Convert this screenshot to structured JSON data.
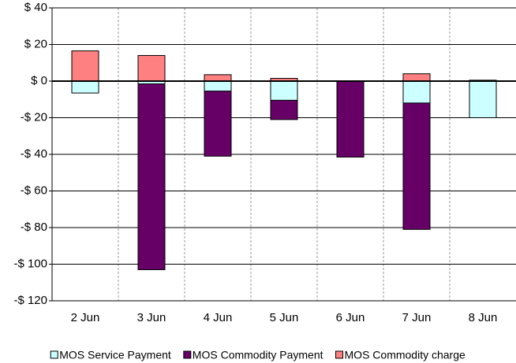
{
  "chart_data": {
    "type": "stacked_bar",
    "categories": [
      "2 Jun",
      "3 Jun",
      "4 Jun",
      "5 Jun",
      "6 Jun",
      "7 Jun",
      "8 Jun"
    ],
    "series": [
      {
        "name": "MOS Service Payment",
        "color": "#ccffff",
        "values": [
          -6.5,
          -1.5,
          -5.5,
          -10.5,
          0,
          -12,
          -20
        ]
      },
      {
        "name": "MOS Commodity Payment",
        "color": "#660066",
        "values": [
          0,
          -101.5,
          -35.5,
          -10.5,
          -41.5,
          -69,
          0
        ]
      },
      {
        "name": "MOS Commodity charge",
        "color": "#ff8080",
        "values": [
          16.5,
          14,
          3.5,
          1.5,
          0,
          4,
          0.5
        ]
      }
    ],
    "ylim": [
      -120,
      40
    ],
    "yticks": [
      {
        "value": -120,
        "label": "-$ 120"
      },
      {
        "value": -100,
        "label": "-$ 100"
      },
      {
        "value": -80,
        "label": "-$ 80"
      },
      {
        "value": -60,
        "label": "-$ 60"
      },
      {
        "value": -40,
        "label": "-$ 40"
      },
      {
        "value": -20,
        "label": "-$ 20"
      },
      {
        "value": 0,
        "label": "$ 0"
      },
      {
        "value": 20,
        "label": "$ 20"
      },
      {
        "value": 40,
        "label": "$ 40"
      }
    ],
    "grid": true,
    "legend": "bottom"
  }
}
